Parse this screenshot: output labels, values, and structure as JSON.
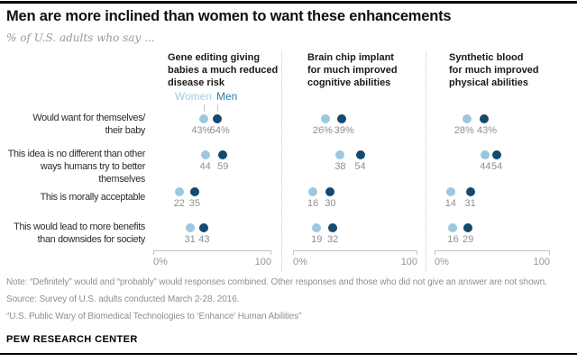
{
  "header": {
    "title": "Men are more inclined than women to want these enhancements",
    "subtitle": "% of U.S. adults who say ..."
  },
  "colors": {
    "women_dot": "#9cc7e0",
    "men_dot": "#144a70",
    "women_label": "#a6cbe0",
    "men_label": "#2e7ba5",
    "axis": "#c3c3c3",
    "value_text": "#8f8f8f"
  },
  "chart_data": {
    "type": "scatter",
    "subtype": "paired-dot-plot",
    "series_names": [
      "Women",
      "Men"
    ],
    "row_labels": [
      [
        "Would want for themselves/",
        "their baby"
      ],
      [
        "This idea is no different than other",
        "ways humans try to better themselves"
      ],
      [
        "This is morally acceptable"
      ],
      [
        "This would lead to more benefits",
        "than downsides for society"
      ]
    ],
    "panels": [
      {
        "title": [
          "Gene editing giving",
          "babies a much reduced",
          "disease risk"
        ],
        "series": [
          {
            "name": "Women",
            "values": [
              43,
              44,
              22,
              31
            ]
          },
          {
            "name": "Men",
            "values": [
              54,
              59,
              35,
              43
            ]
          }
        ]
      },
      {
        "title": [
          "Brain chip implant",
          "for much improved",
          "cognitive abilities"
        ],
        "series": [
          {
            "name": "Women",
            "values": [
              26,
              38,
              16,
              19
            ]
          },
          {
            "name": "Men",
            "values": [
              39,
              54,
              30,
              32
            ]
          }
        ]
      },
      {
        "title": [
          "Synthetic blood",
          "for much improved",
          "physical abilities"
        ],
        "series": [
          {
            "name": "Women",
            "values": [
              28,
              44,
              14,
              16
            ]
          },
          {
            "name": "Men",
            "values": [
              43,
              54,
              31,
              29
            ]
          }
        ]
      }
    ],
    "first_row_value_suffix": "%",
    "axis": {
      "min": 0,
      "max": 100,
      "min_label": "0%",
      "max_label": "100"
    },
    "legend_position": "top of first panel",
    "grid": false
  },
  "notes": {
    "note": "Note: “Definitely” would and “probably” would responses combined. Other responses and those who did not give an answer are not shown.",
    "source": "Source: Survey of U.S. adults conducted March 2-28, 2016.",
    "report": "“U.S. Public Wary of Biomedical Technologies to ‘Enhance’ Human Abilities”",
    "brand": "PEW RESEARCH CENTER"
  }
}
